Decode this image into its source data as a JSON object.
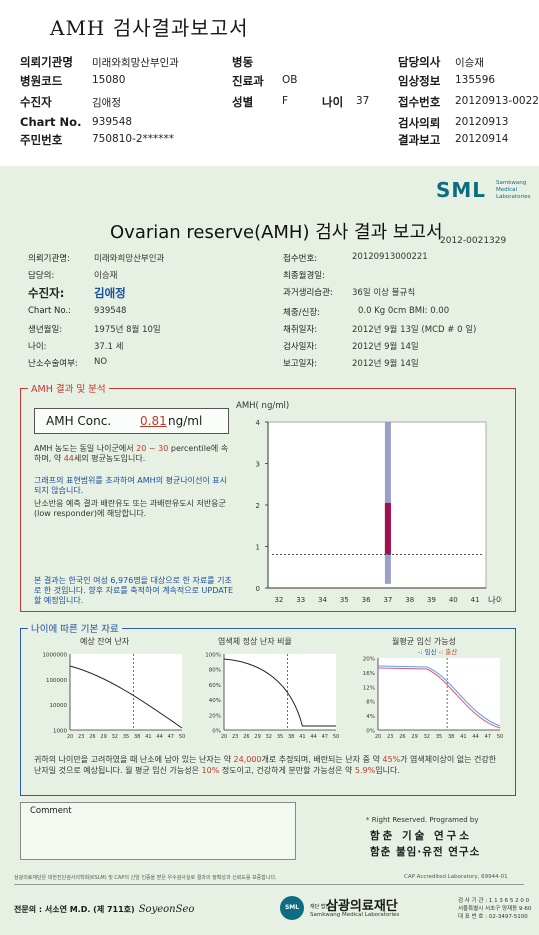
{
  "header": {
    "title": "AMH 검사결과보고서",
    "left": [
      {
        "label": "의뢰기관명",
        "value": "미래와희망산부인과"
      },
      {
        "label": "병원코드",
        "value": "15080"
      },
      {
        "label": "수진자",
        "value": "김애정"
      },
      {
        "label": "Chart No.",
        "value": "939548"
      },
      {
        "label": "주민번호",
        "value": "750810-2******"
      }
    ],
    "mid": [
      {
        "label": "병동",
        "value": ""
      },
      {
        "label": "진료과",
        "value": "OB"
      },
      {
        "label": "성별",
        "value": "F"
      }
    ],
    "age": {
      "label": "나이",
      "value": "37"
    },
    "right": [
      {
        "label": "담당의사",
        "value": "이승재"
      },
      {
        "label": "임상정보",
        "value": "135596"
      },
      {
        "label": "접수번호",
        "value": "20120913-00221"
      },
      {
        "label": "검사의뢰",
        "value": "20120913"
      },
      {
        "label": "결과보고",
        "value": "20120914"
      }
    ]
  },
  "report": {
    "logo_text": "SML",
    "logo_sub": "Samkwang Medical Laboratories",
    "title": "Ovarian reserve(AMH) 검사 결과 보고서",
    "report_no": "2012-0021329",
    "info_left": [
      {
        "label": "의뢰기관명:",
        "value": "미래와희망산부인과"
      },
      {
        "label": "담당의:",
        "value": "이승재"
      },
      {
        "label": "수진자:",
        "value": "김애정"
      },
      {
        "label": "Chart No.:",
        "value": "939548"
      },
      {
        "label": "생년월일:",
        "value": "1975년 8월 10일"
      },
      {
        "label": "나이:",
        "value": "37.1 세"
      },
      {
        "label": "난소수술여부:",
        "value": "NO"
      }
    ],
    "info_right": [
      {
        "label": "접수번호:",
        "value": "20120913000221"
      },
      {
        "label": "최종월경일:",
        "value": ""
      },
      {
        "label": "과거생리습관:",
        "value": "36일 이상 불규칙"
      },
      {
        "label": "체중/신장:",
        "value": "0.0 Kg     0cm   BMI:   0.00"
      },
      {
        "label": "채취일자:",
        "value": "2012년 9월 13일   (MCD # 0 일)"
      },
      {
        "label": "검사일자:",
        "value": "2012년 9월 14일"
      },
      {
        "label": "보고일자:",
        "value": "2012년 9월 14일"
      }
    ],
    "amh_section": {
      "title": "AMH 결과 및 분석",
      "conc_label": "AMH Conc.",
      "conc_value": "0.81",
      "conc_unit": "ng/ml",
      "p1_a": "AMH 농도는 동일 나이군에서",
      "p1_range": "20 ~ 30",
      "p1_b": "percentile에 속하며, 약",
      "p1_age": "44",
      "p1_c": "세의 평균농도입니다.",
      "p2": "그래프의 표현범위를 초과하여 AMH의 평균나이선이 표시되지 않습니다.",
      "p3": "난소반응 예측 결과 배란유도 또는 과배란유도시 저반응군 (low responder)에 해당합니다.",
      "p4": "본 결과는 한국인 여성 6,976명을 대상으로 한 자료를 기초로 한 것입니다. 향후 자료를 축적하여 계속적으로 UPDATE할 예정입니다."
    },
    "fert_section": {
      "title": "나이에 따른 기본 자료",
      "c1_title": "예상 잔여 난자",
      "c2_title": "염색체 정상 난자 비율",
      "c3_title": "월평균 임신 가능성",
      "c3_legend_a": "-: 임신",
      "c3_legend_sep": "-: ",
      "c3_legend_b": "출산",
      "summary_a": "귀하의 나이만을 고려하였을 때 난소에 남아 있는 난자는 약",
      "summary_eggs": "24,000",
      "summary_b": "개로 추정되며, 배란되는 난자 중 약",
      "summary_pct": "45%",
      "summary_c": "가 염색체이상이 없는 건강한 난자일 것으로 예상됩니다. 월 평균 임신 가능성은",
      "summary_preg": "10%",
      "summary_d": "정도이고, 건강하게 분만할 가능성은 약",
      "summary_birth": "5.9%",
      "summary_e": "입니다."
    },
    "comment_label": "Comment",
    "rights": "* Right Reserved. Programed by",
    "inst1": "함춘 기술 연구소",
    "inst2": "함춘 불임·유전 연구소",
    "footnote": "삼광의료재단은 대한진단검사의학회(KSLM) 및 CAP의 신임 인증을 받은 우수검사실로 결과의 정확성과 신뢰도를 보증합니다.",
    "cap": "CAP  Accredited  Laboratory,  69944-01",
    "specialist": "전문의 : 서소연 M.D. (제 711호)",
    "signature": "SoyeonSeo",
    "found_small": "재단 법인",
    "found_name": "삼광의료재단",
    "found_en": "Samkwang Medical Laboratories",
    "contact1": "검 사 기 관 : 1 1 3 6 5 2 0 0",
    "contact2": "서울특별시 서초구 양재동 9-60",
    "contact3": "대 표 번 호 : 02-3497-5100"
  },
  "chart_data": [
    {
      "type": "bar",
      "title": "AMH( ng/ml)",
      "xlabel": "나이",
      "categories": [
        32,
        33,
        34,
        35,
        36,
        37,
        38,
        39,
        40,
        41
      ],
      "ylim": [
        0,
        4
      ],
      "yticks": [
        0,
        1,
        2,
        3,
        4
      ],
      "range_bar": {
        "x": 37,
        "low": 0.1,
        "high": 4.0
      },
      "value_bar": {
        "x": 37,
        "low": 0.81,
        "high": 2.05
      },
      "patient_line": 0.81
    },
    {
      "type": "line",
      "title": "예상 잔여 난자",
      "x_ticks": [
        20,
        23,
        26,
        29,
        32,
        35,
        38,
        41,
        44,
        47,
        50
      ],
      "y_ticks": [
        "1000000",
        "100000",
        "10000",
        "1000"
      ],
      "marker_x": 37
    },
    {
      "type": "line",
      "title": "염색체 정상 난자 비율",
      "x_ticks": [
        20,
        23,
        26,
        29,
        32,
        35,
        38,
        41,
        44,
        47,
        50
      ],
      "y_ticks": [
        "100%",
        "80%",
        "60%",
        "40%",
        "20%",
        "0%"
      ],
      "marker_x": 37
    },
    {
      "type": "line",
      "title": "월평균 임신 가능성",
      "x_ticks": [
        20,
        23,
        26,
        29,
        32,
        35,
        38,
        41,
        44,
        47,
        50
      ],
      "y_ticks": [
        "20%",
        "16%",
        "12%",
        "8%",
        "4%",
        "0%"
      ],
      "marker_x": 37,
      "series": [
        {
          "name": "임신"
        },
        {
          "name": "출산"
        }
      ]
    }
  ]
}
